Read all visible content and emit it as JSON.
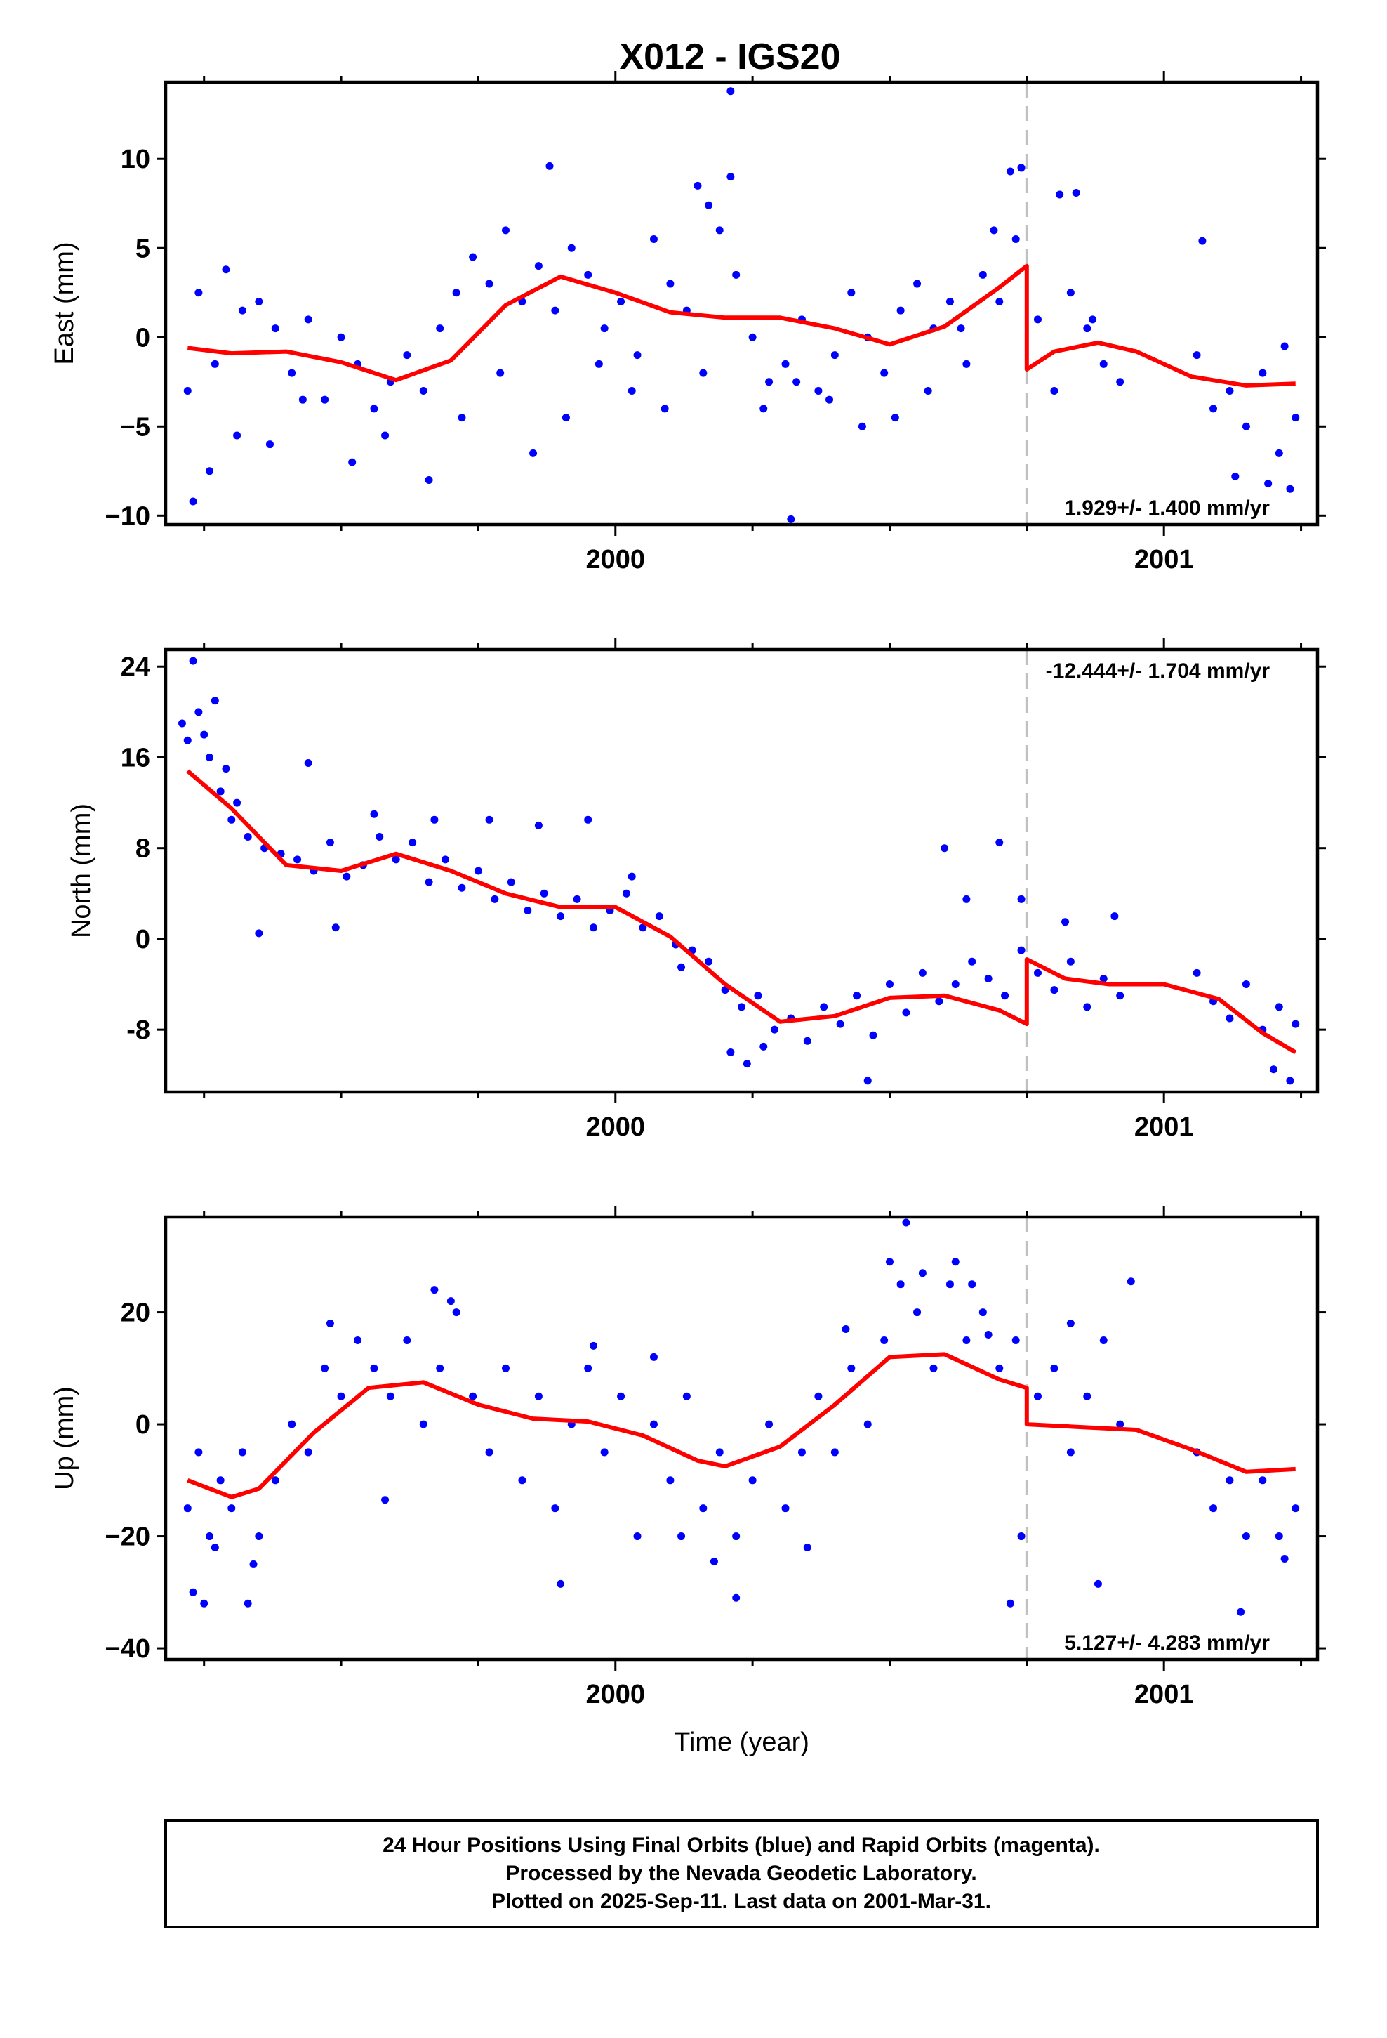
{
  "title": "X012 - IGS20",
  "colors": {
    "points": "#0000ff",
    "model": "#ff0000",
    "break_line": "#c0c0c0"
  },
  "chart_data": [
    {
      "type": "scatter",
      "ylabel": "East (mm)",
      "xlabel": "",
      "xlim": [
        1999.18,
        2001.28
      ],
      "ylim": [
        -10.5,
        14.3
      ],
      "yticks": [
        -10,
        -5,
        0,
        5,
        10
      ],
      "ytick_labels": [
        "−10",
        "−5",
        "0",
        "5",
        "10"
      ],
      "xticks": [
        2000,
        2001
      ],
      "xtick_labels": [
        "2000",
        "2001"
      ],
      "break_year": 2000.75,
      "rate_text": "1.929+/- 1.400 mm/yr",
      "rate_position": "bottom-right",
      "model_series": {
        "x": [
          1999.22,
          1999.3,
          1999.4,
          1999.5,
          1999.6,
          1999.7,
          1999.8,
          1999.9,
          2000.0,
          2000.1,
          2000.2,
          2000.3,
          2000.4,
          2000.5,
          2000.6,
          2000.7,
          2000.75,
          2000.75,
          2000.8,
          2000.88,
          2000.95,
          2001.05,
          2001.15,
          2001.24
        ],
        "y": [
          -0.6,
          -0.9,
          -0.8,
          -1.4,
          -2.4,
          -1.3,
          1.8,
          3.4,
          2.5,
          1.4,
          1.1,
          1.1,
          0.5,
          -0.4,
          0.6,
          2.8,
          4.0,
          -1.8,
          -0.8,
          -0.3,
          -0.8,
          -2.2,
          -2.7,
          -2.6
        ]
      },
      "points": {
        "x": [
          1999.22,
          1999.24,
          1999.27,
          1999.29,
          1999.32,
          1999.35,
          1999.38,
          1999.41,
          1999.44,
          1999.47,
          1999.5,
          1999.53,
          1999.56,
          1999.59,
          1999.62,
          1999.65,
          1999.68,
          1999.71,
          1999.74,
          1999.77,
          1999.8,
          1999.83,
          1999.86,
          1999.89,
          1999.92,
          1999.95,
          1999.98,
          2000.01,
          2000.04,
          2000.07,
          2000.1,
          2000.13,
          2000.16,
          2000.19,
          2000.22,
          2000.25,
          2000.28,
          2000.31,
          2000.34,
          2000.37,
          2000.4,
          2000.43,
          2000.46,
          2000.49,
          2000.52,
          2000.55,
          2000.58,
          2000.61,
          2000.64,
          2000.67,
          2000.7,
          2000.73,
          2000.77,
          2000.8,
          2000.83,
          2000.86,
          2000.89,
          2000.92,
          2001.06,
          2001.09,
          2001.12,
          2001.15,
          2001.18,
          2001.21,
          2001.24,
          1999.23,
          1999.26,
          1999.31,
          1999.37,
          1999.43,
          1999.52,
          1999.58,
          1999.66,
          1999.72,
          1999.79,
          1999.85,
          1999.91,
          1999.97,
          2000.03,
          2000.09,
          2000.15,
          2000.21,
          2000.27,
          2000.33,
          2000.39,
          2000.45,
          2000.51,
          2000.57,
          2000.63,
          2000.69,
          2000.74,
          2000.81,
          2000.87,
          2001.07,
          2001.13,
          2001.19,
          2001.23,
          2000.21,
          2000.17,
          1999.88,
          2000.72,
          2000.84,
          2000.32,
          2001.22
        ],
        "y": [
          -3.0,
          2.5,
          -1.5,
          3.8,
          1.5,
          2.0,
          0.5,
          -2.0,
          1.0,
          -3.5,
          0.0,
          -1.5,
          -4.0,
          -2.5,
          -1.0,
          -3.0,
          0.5,
          2.5,
          4.5,
          3.0,
          6.0,
          2.0,
          4.0,
          1.5,
          5.0,
          3.5,
          0.5,
          2.0,
          -1.0,
          5.5,
          3.0,
          1.5,
          -2.0,
          6.0,
          3.5,
          0.0,
          -2.5,
          -1.5,
          1.0,
          -3.0,
          -1.0,
          2.5,
          0.0,
          -2.0,
          1.5,
          3.0,
          0.5,
          2.0,
          -1.5,
          3.5,
          2.0,
          5.5,
          1.0,
          -3.0,
          2.5,
          0.5,
          -1.5,
          -2.5,
          -1.0,
          -4.0,
          -3.0,
          -5.0,
          -2.0,
          -6.5,
          -4.5,
          -9.2,
          -7.5,
          -5.5,
          -6.0,
          -3.5,
          -7.0,
          -5.5,
          -8.0,
          -4.5,
          -2.0,
          -6.5,
          -4.5,
          -1.5,
          -3.0,
          -4.0,
          8.5,
          9.0,
          -4.0,
          -2.5,
          -3.5,
          -5.0,
          -4.5,
          -3.0,
          0.5,
          6.0,
          9.5,
          8.0,
          1.0,
          5.4,
          -7.8,
          -8.2,
          -8.5,
          13.8,
          7.4,
          9.6,
          9.3,
          8.1,
          -10.2,
          -0.5
        ]
      }
    },
    {
      "type": "scatter",
      "ylabel": "North (mm)",
      "xlabel": "",
      "xlim": [
        1999.18,
        2001.28
      ],
      "ylim": [
        -13.5,
        25.5
      ],
      "yticks": [
        -8,
        0,
        8,
        16,
        24
      ],
      "ytick_labels": [
        "-8",
        "0",
        "8",
        "16",
        "24"
      ],
      "xticks": [
        2000,
        2001
      ],
      "xtick_labels": [
        "2000",
        "2001"
      ],
      "break_year": 2000.75,
      "rate_text": "-12.444+/- 1.704 mm/yr",
      "rate_position": "top-right",
      "model_series": {
        "x": [
          1999.22,
          1999.3,
          1999.4,
          1999.5,
          1999.6,
          1999.7,
          1999.8,
          1999.9,
          2000.0,
          2000.1,
          2000.2,
          2000.3,
          2000.4,
          2000.5,
          2000.6,
          2000.7,
          2000.75,
          2000.75,
          2000.82,
          2000.9,
          2001.0,
          2001.1,
          2001.18,
          2001.24
        ],
        "y": [
          14.8,
          11.5,
          6.5,
          6.0,
          7.5,
          6.0,
          4.0,
          2.8,
          2.8,
          0.2,
          -4.0,
          -7.3,
          -6.8,
          -5.2,
          -5.0,
          -6.3,
          -7.5,
          -1.8,
          -3.5,
          -4.0,
          -4.0,
          -5.3,
          -8.3,
          -10.0
        ]
      },
      "points": {
        "x": [
          1999.22,
          1999.24,
          1999.26,
          1999.28,
          1999.3,
          1999.33,
          1999.36,
          1999.39,
          1999.42,
          1999.45,
          1999.48,
          1999.51,
          1999.54,
          1999.57,
          1999.6,
          1999.63,
          1999.66,
          1999.69,
          1999.72,
          1999.75,
          1999.78,
          1999.81,
          1999.84,
          1999.87,
          1999.9,
          1999.93,
          1999.96,
          1999.99,
          2000.02,
          2000.05,
          2000.08,
          2000.11,
          2000.14,
          2000.17,
          2000.2,
          2000.23,
          2000.26,
          2000.29,
          2000.32,
          2000.35,
          2000.38,
          2000.41,
          2000.44,
          2000.47,
          2000.5,
          2000.53,
          2000.56,
          2000.59,
          2000.62,
          2000.65,
          2000.68,
          2000.71,
          2000.74,
          2000.77,
          2000.8,
          2000.83,
          2000.86,
          2000.89,
          2000.92,
          2001.06,
          2001.09,
          2001.12,
          2001.15,
          2001.18,
          2001.21,
          2001.24,
          1999.23,
          1999.25,
          1999.27,
          1999.29,
          1999.31,
          1999.35,
          1999.44,
          1999.49,
          1999.56,
          1999.67,
          1999.77,
          1999.86,
          1999.95,
          2000.03,
          2000.12,
          2000.21,
          2000.24,
          2000.27,
          2000.46,
          2000.6,
          2000.64,
          2000.7,
          2000.74,
          2000.82,
          2000.91,
          2001.2,
          2001.23,
          1999.21
        ],
        "y": [
          17.5,
          20.0,
          16.0,
          13.0,
          10.5,
          9.0,
          8.0,
          7.5,
          7.0,
          6.0,
          8.5,
          5.5,
          6.5,
          9.0,
          7.0,
          8.5,
          5.0,
          7.0,
          4.5,
          6.0,
          3.5,
          5.0,
          2.5,
          4.0,
          2.0,
          3.5,
          1.0,
          2.5,
          4.0,
          1.0,
          2.0,
          -0.5,
          -1.0,
          -2.0,
          -4.5,
          -6.0,
          -5.0,
          -8.0,
          -7.0,
          -9.0,
          -6.0,
          -7.5,
          -5.0,
          -8.5,
          -4.0,
          -6.5,
          -3.0,
          -5.5,
          -4.0,
          -2.0,
          -3.5,
          -5.0,
          -1.0,
          -3.0,
          -4.5,
          -2.0,
          -6.0,
          -3.5,
          -5.0,
          -3.0,
          -5.5,
          -7.0,
          -4.0,
          -8.0,
          -6.0,
          -7.5,
          24.5,
          18.0,
          21.0,
          15.0,
          12.0,
          0.5,
          15.5,
          1.0,
          11.0,
          10.5,
          10.5,
          10.0,
          10.5,
          5.5,
          -2.5,
          -10.0,
          -11.0,
          -9.5,
          -12.5,
          8.0,
          3.5,
          8.5,
          3.5,
          1.5,
          2.0,
          -11.5,
          -12.5,
          19.0
        ]
      }
    },
    {
      "type": "scatter",
      "ylabel": "Up (mm)",
      "xlabel": "Time (year)",
      "xlim": [
        1999.18,
        2001.28
      ],
      "ylim": [
        -42.0,
        37.0
      ],
      "yticks": [
        -40,
        -20,
        0,
        20
      ],
      "ytick_labels": [
        "−40",
        "−20",
        "0",
        "20"
      ],
      "xticks": [
        2000,
        2001
      ],
      "xtick_labels": [
        "2000",
        "2001"
      ],
      "break_year": 2000.75,
      "rate_text": "5.127+/- 4.283 mm/yr",
      "rate_position": "bottom-right",
      "model_series": {
        "x": [
          1999.22,
          1999.3,
          1999.35,
          1999.45,
          1999.55,
          1999.65,
          1999.75,
          1999.85,
          1999.95,
          2000.05,
          2000.15,
          2000.2,
          2000.3,
          2000.4,
          2000.5,
          2000.6,
          2000.7,
          2000.75,
          2000.75,
          2000.85,
          2000.95,
          2001.05,
          2001.15,
          2001.24
        ],
        "y": [
          -10.0,
          -13.0,
          -11.5,
          -1.5,
          6.5,
          7.5,
          3.5,
          1.0,
          0.5,
          -2.0,
          -6.5,
          -7.5,
          -4.0,
          3.5,
          12.0,
          12.5,
          8.0,
          6.5,
          0.0,
          -0.5,
          -1.0,
          -4.5,
          -8.5,
          -8.0
        ]
      },
      "points": {
        "x": [
          1999.22,
          1999.24,
          1999.26,
          1999.28,
          1999.3,
          1999.32,
          1999.35,
          1999.38,
          1999.41,
          1999.44,
          1999.47,
          1999.5,
          1999.53,
          1999.56,
          1999.59,
          1999.62,
          1999.65,
          1999.68,
          1999.71,
          1999.74,
          1999.77,
          1999.8,
          1999.83,
          1999.86,
          1999.89,
          1999.92,
          1999.95,
          1999.98,
          2000.01,
          2000.04,
          2000.07,
          2000.1,
          2000.13,
          2000.16,
          2000.19,
          2000.22,
          2000.25,
          2000.28,
          2000.31,
          2000.34,
          2000.37,
          2000.4,
          2000.43,
          2000.46,
          2000.49,
          2000.52,
          2000.55,
          2000.58,
          2000.61,
          2000.64,
          2000.67,
          2000.7,
          2000.73,
          2000.77,
          2000.8,
          2000.83,
          2000.86,
          2000.89,
          2000.92,
          2001.06,
          2001.09,
          2001.12,
          2001.15,
          2001.18,
          2001.21,
          2001.24,
          1999.23,
          1999.25,
          1999.27,
          1999.33,
          1999.34,
          1999.48,
          1999.58,
          1999.67,
          1999.7,
          1999.9,
          1999.96,
          2000.07,
          2000.12,
          2000.18,
          2000.22,
          2000.35,
          2000.42,
          2000.5,
          2000.53,
          2000.56,
          2000.62,
          2000.65,
          2000.68,
          2000.72,
          2000.74,
          2000.83,
          2000.88,
          2000.94,
          2001.14,
          2001.22
        ],
        "y": [
          -15.0,
          -5.0,
          -20.0,
          -10.0,
          -15.0,
          -5.0,
          -20.0,
          -10.0,
          0.0,
          -5.0,
          10.0,
          5.0,
          15.0,
          10.0,
          5.0,
          15.0,
          0.0,
          10.0,
          20.0,
          5.0,
          -5.0,
          10.0,
          -10.0,
          5.0,
          -15.0,
          0.0,
          10.0,
          -5.0,
          5.0,
          -20.0,
          0.0,
          -10.0,
          5.0,
          -15.0,
          -5.0,
          -20.0,
          -10.0,
          0.0,
          -15.0,
          -5.0,
          5.0,
          -5.0,
          10.0,
          0.0,
          15.0,
          25.0,
          20.0,
          10.0,
          25.0,
          15.0,
          20.0,
          10.0,
          15.0,
          5.0,
          10.0,
          -5.0,
          5.0,
          15.0,
          0.0,
          -5.0,
          -15.0,
          -10.0,
          -20.0,
          -10.0,
          -20.0,
          -15.0,
          -30.0,
          -32.0,
          -22.0,
          -32.0,
          -25.0,
          18.0,
          -13.5,
          24.0,
          22.0,
          -28.5,
          14.0,
          12.0,
          -20.0,
          -24.5,
          -31.0,
          -22.0,
          17.0,
          29.0,
          36.0,
          27.0,
          29.0,
          25.0,
          16.0,
          -32.0,
          -20.0,
          18.0,
          -28.5,
          25.5,
          -33.5,
          -24.0
        ]
      }
    }
  ],
  "footer": {
    "line1": "24 Hour Positions Using Final Orbits (blue) and Rapid Orbits (magenta).",
    "line2": "Processed by the Nevada Geodetic Laboratory.",
    "line3": "Plotted on 2025-Sep-11. Last data on 2001-Mar-31."
  }
}
